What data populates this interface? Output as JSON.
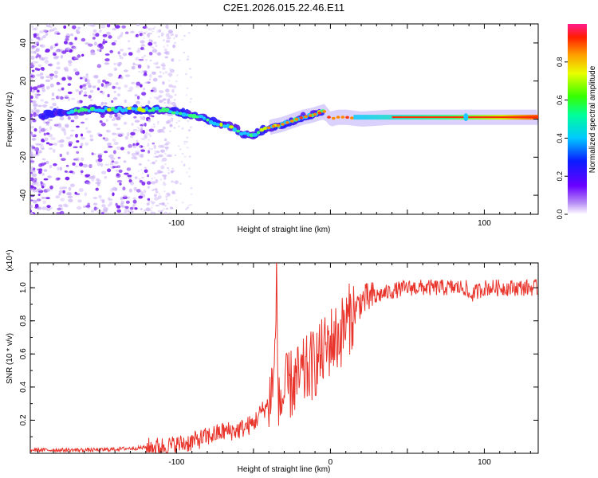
{
  "title": "C2E1.2026.015.22.46.E11",
  "chart_data": [
    {
      "type": "heatmap",
      "title": "C2E1.2026.015.22.46.E11",
      "xlabel": "Height of straight line (km)",
      "ylabel": "Frequency (Hz)",
      "xlim": [
        -195,
        135
      ],
      "ylim": [
        -50,
        50
      ],
      "xticks": [
        -100,
        100
      ],
      "yticks": [
        40,
        20,
        0,
        -20,
        -40
      ],
      "colorbar": {
        "label": "Normalized spectral amplitude",
        "range": [
          0,
          1
        ],
        "ticks": [
          0.0,
          0.2,
          0.4,
          0.6,
          0.8
        ]
      },
      "ridge": {
        "x": [
          -185,
          -170,
          -150,
          -130,
          -110,
          -95,
          -85,
          -75,
          -65,
          -58,
          -52,
          -45,
          -38,
          -32,
          -25,
          -18,
          -12,
          -8,
          -4,
          0,
          5,
          10,
          20,
          40,
          60,
          88,
          110,
          135
        ],
        "freq": [
          3,
          4,
          5,
          5,
          5,
          3,
          1,
          -2,
          -4,
          -7,
          -9,
          -6,
          -4,
          -3,
          -1,
          1,
          2,
          3,
          4,
          0,
          1,
          1,
          0,
          1,
          1,
          1,
          1,
          1
        ]
      }
    },
    {
      "type": "line",
      "xlabel": "Height of straight line (km)",
      "ylabel": "SNR (10 * v/v)",
      "y_multiplier": "(x10⁴)",
      "xlim": [
        -195,
        135
      ],
      "ylim": [
        0,
        1.15
      ],
      "xticks": [
        -100,
        0,
        100
      ],
      "yticks": [
        0.2,
        0.4,
        0.6,
        0.8,
        1.0
      ],
      "series": [
        {
          "name": "SNR",
          "color": "#e8342b",
          "x": [
            -195,
            -170,
            -150,
            -130,
            -110,
            -100,
            -90,
            -80,
            -70,
            -60,
            -50,
            -45,
            -40,
            -36,
            -35,
            -34,
            -32,
            -28,
            -20,
            -10,
            -5,
            0,
            5,
            10,
            15,
            20,
            30,
            40,
            50,
            60,
            70,
            80,
            88,
            90,
            100,
            110,
            120,
            135
          ],
          "y": [
            0.02,
            0.02,
            0.02,
            0.03,
            0.04,
            0.05,
            0.07,
            0.1,
            0.13,
            0.14,
            0.18,
            0.25,
            0.3,
            0.55,
            1.15,
            0.4,
            0.3,
            0.4,
            0.45,
            0.55,
            0.6,
            0.68,
            0.7,
            0.78,
            0.85,
            0.92,
            0.95,
            0.98,
            1.0,
            1.0,
            1.0,
            1.0,
            1.0,
            0.95,
            1.0,
            1.0,
            1.0,
            1.0
          ]
        }
      ]
    }
  ]
}
